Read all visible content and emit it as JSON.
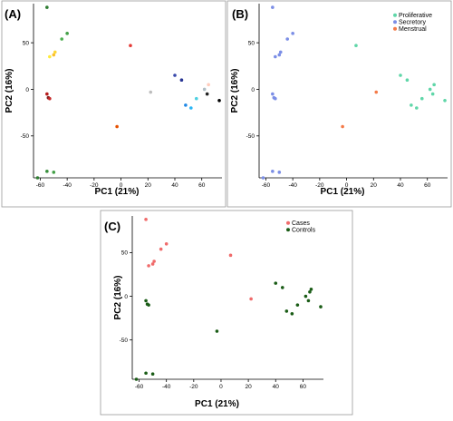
{
  "panels": [
    {
      "label": "(A)",
      "xlabel": "PC1 (21%)",
      "ylabel": "PC2 (16%)",
      "xticks": [
        "-60",
        "-40",
        "-20",
        "0",
        "20",
        "40",
        "60"
      ],
      "yticks": [
        "50",
        "0",
        "-50"
      ],
      "legend": []
    },
    {
      "label": "(B)",
      "xlabel": "PC1 (21%)",
      "ylabel": "PC2 (16%)",
      "xticks": [
        "-60",
        "-40",
        "-20",
        "0",
        "20",
        "40",
        "60"
      ],
      "yticks": [
        "50",
        "0",
        "-50"
      ],
      "legend": [
        {
          "name": "Proliferative",
          "color": "#5fd6a8"
        },
        {
          "name": "Secretory",
          "color": "#7b8ee6"
        },
        {
          "name": "Menstrual",
          "color": "#f47a48"
        }
      ]
    },
    {
      "label": "(C)",
      "xlabel": "PC1 (21%)",
      "ylabel": "PC2 (16%)",
      "xticks": [
        "-60",
        "-40",
        "-20",
        "0",
        "20",
        "40",
        "60"
      ],
      "yticks": [
        "50",
        "0",
        "-50"
      ],
      "legend": [
        {
          "name": "Cases",
          "color": "#f06b6b"
        },
        {
          "name": "Controls",
          "color": "#1a5c16"
        }
      ]
    }
  ],
  "chart_data": [
    {
      "type": "scatter",
      "title": "(A)",
      "xlabel": "PC1 (21%)",
      "ylabel": "PC2 (16%)",
      "xlim": [
        -65,
        75
      ],
      "ylim": [
        -95,
        92
      ],
      "grid": false,
      "points": [
        {
          "x": -55,
          "y": 88,
          "color": "#2e7d32"
        },
        {
          "x": -40,
          "y": 60,
          "color": "#43a047"
        },
        {
          "x": -44,
          "y": 54,
          "color": "#4caf50"
        },
        {
          "x": -49,
          "y": 40,
          "color": "#fdd835"
        },
        {
          "x": -50,
          "y": 37,
          "color": "#fbc02d"
        },
        {
          "x": -53,
          "y": 35,
          "color": "#ffeb3b"
        },
        {
          "x": 7,
          "y": 47,
          "color": "#e53935"
        },
        {
          "x": -55,
          "y": -5,
          "color": "#b71c1c"
        },
        {
          "x": -54,
          "y": -9,
          "color": "#7f1d1d"
        },
        {
          "x": -53,
          "y": -10,
          "color": "#c62828"
        },
        {
          "x": -3,
          "y": -40,
          "color": "#e65100"
        },
        {
          "x": 22,
          "y": -3,
          "color": "#bdbdbd"
        },
        {
          "x": 40,
          "y": 15,
          "color": "#3949ab"
        },
        {
          "x": 45,
          "y": 10,
          "color": "#283593"
        },
        {
          "x": 48,
          "y": -17,
          "color": "#1e88e5"
        },
        {
          "x": 52,
          "y": -20,
          "color": "#29b6f6"
        },
        {
          "x": 56,
          "y": -10,
          "color": "#4dd0e1"
        },
        {
          "x": 62,
          "y": 0,
          "color": "#b0bec5"
        },
        {
          "x": 65,
          "y": 5,
          "color": "#ffccbc"
        },
        {
          "x": 64,
          "y": -5,
          "color": "#212121"
        },
        {
          "x": 73,
          "y": -12,
          "color": "#000000"
        },
        {
          "x": -62,
          "y": -95,
          "color": "#2e7d32"
        },
        {
          "x": -55,
          "y": -88,
          "color": "#388e3c"
        },
        {
          "x": -50,
          "y": -89,
          "color": "#43a047"
        }
      ]
    },
    {
      "type": "scatter",
      "title": "(B)",
      "xlabel": "PC1 (21%)",
      "ylabel": "PC2 (16%)",
      "xlim": [
        -65,
        75
      ],
      "ylim": [
        -95,
        92
      ],
      "grid": false,
      "legend_position": "top-right",
      "series": [
        {
          "name": "Proliferative",
          "color": "#5fd6a8",
          "points": [
            [
              7,
              47
            ],
            [
              40,
              15
            ],
            [
              45,
              10
            ],
            [
              48,
              -17
            ],
            [
              52,
              -20
            ],
            [
              56,
              -10
            ],
            [
              62,
              0
            ],
            [
              65,
              5
            ],
            [
              64,
              -5
            ],
            [
              73,
              -12
            ]
          ]
        },
        {
          "name": "Secretory",
          "color": "#7b8ee6",
          "points": [
            [
              -55,
              88
            ],
            [
              -40,
              60
            ],
            [
              -44,
              54
            ],
            [
              -49,
              40
            ],
            [
              -50,
              37
            ],
            [
              -53,
              35
            ],
            [
              -55,
              -5
            ],
            [
              -54,
              -9
            ],
            [
              -53,
              -10
            ],
            [
              -62,
              -95
            ],
            [
              -55,
              -88
            ],
            [
              -50,
              -89
            ]
          ]
        },
        {
          "name": "Menstrual",
          "color": "#f47a48",
          "points": [
            [
              22,
              -3
            ],
            [
              -3,
              -40
            ]
          ]
        }
      ]
    },
    {
      "type": "scatter",
      "title": "(C)",
      "xlabel": "PC1 (21%)",
      "ylabel": "PC2 (16%)",
      "xlim": [
        -65,
        75
      ],
      "ylim": [
        -95,
        92
      ],
      "grid": false,
      "legend_position": "top-right",
      "series": [
        {
          "name": "Cases",
          "color": "#f06b6b",
          "points": [
            [
              -55,
              88
            ],
            [
              -40,
              60
            ],
            [
              -44,
              54
            ],
            [
              -49,
              40
            ],
            [
              -50,
              37
            ],
            [
              -53,
              35
            ],
            [
              7,
              47
            ],
            [
              22,
              -3
            ]
          ]
        },
        {
          "name": "Controls",
          "color": "#1a5c16",
          "points": [
            [
              -55,
              -5
            ],
            [
              -54,
              -9
            ],
            [
              -53,
              -10
            ],
            [
              -3,
              -40
            ],
            [
              40,
              15
            ],
            [
              45,
              10
            ],
            [
              48,
              -17
            ],
            [
              52,
              -20
            ],
            [
              56,
              -10
            ],
            [
              62,
              0
            ],
            [
              65,
              5
            ],
            [
              64,
              -5
            ],
            [
              66,
              8
            ],
            [
              73,
              -12
            ],
            [
              -62,
              -95
            ],
            [
              -55,
              -88
            ],
            [
              -50,
              -89
            ]
          ]
        }
      ]
    }
  ]
}
